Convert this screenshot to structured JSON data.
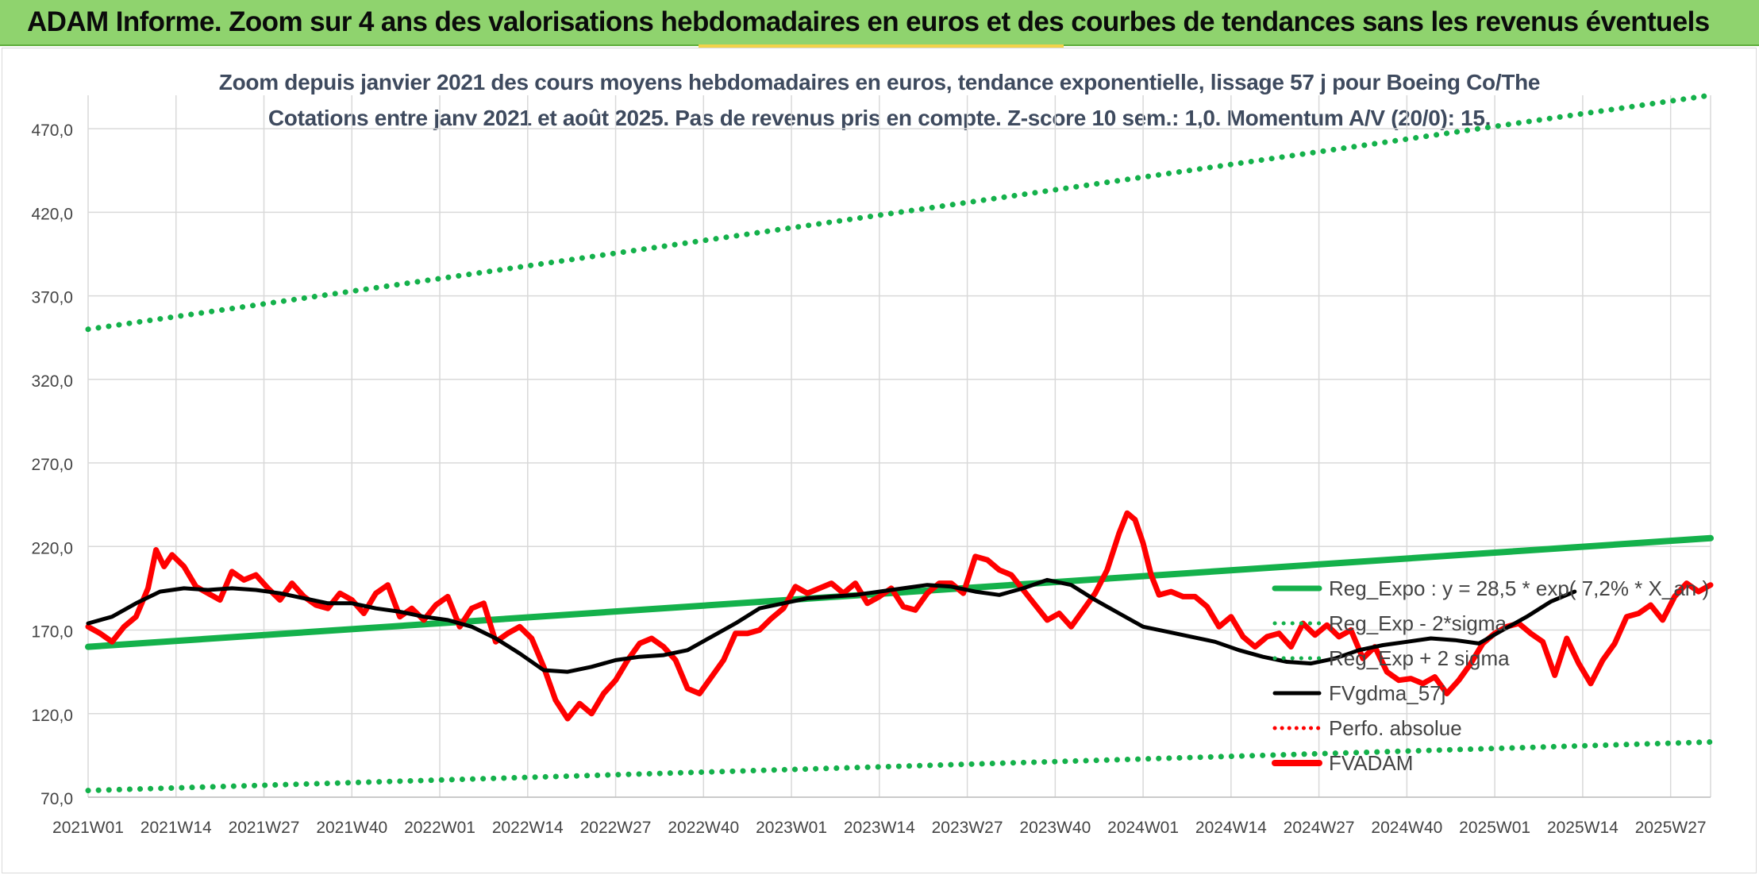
{
  "header": {
    "title": "ADAM Informe. Zoom sur 4 ans des valorisations hebdomadaires en euros et des courbes de tendances sans les revenus éventuels"
  },
  "colors": {
    "banner": "#8fd36e",
    "trend": "#14b14b",
    "price": "#ff0000",
    "smooth": "#000000",
    "perfo": "#ff0000",
    "grid": "#d9d9d9"
  },
  "chart_data": {
    "type": "line",
    "title": "Zoom depuis janvier 2021 des cours moyens hebdomadaires en euros, tendance exponentielle, lissage 57 j pour Boeing Co/The",
    "subtitle": "Cotations entre janv 2021 et août 2025. Pas de revenus pris en compte. Z-score 10 sem.: 1,0. Momentum A/V (20/0): 15.",
    "xlabel": "",
    "ylabel": "",
    "ylim": [
      70,
      490
    ],
    "yticks": [
      "70,0",
      "120,0",
      "170,0",
      "220,0",
      "270,0",
      "320,0",
      "370,0",
      "420,0",
      "470,0"
    ],
    "ytick_values": [
      70,
      120,
      170,
      220,
      270,
      320,
      370,
      420,
      470
    ],
    "xticks": [
      "2021W01",
      "2021W14",
      "2021W27",
      "2021W40",
      "2022W01",
      "2022W14",
      "2022W27",
      "2022W40",
      "2023W01",
      "2023W14",
      "2023W27",
      "2023W40",
      "2024W01",
      "2024W14",
      "2024W27",
      "2024W40",
      "2025W01",
      "2025W14",
      "2025W27"
    ],
    "grid": true,
    "legend_position": "bottom-right",
    "week_count": 247,
    "series": [
      {
        "name": "Reg_Expo : y = 28,5 * exp( 7,2% *  X_an )",
        "style": "solid",
        "color": "#14b14b",
        "points": [
          [
            0,
            160
          ],
          [
            246,
            225
          ]
        ]
      },
      {
        "name": "Reg_Exp - 2*sigma",
        "style": "dotted",
        "color": "#14b14b",
        "points": [
          [
            0,
            74
          ],
          [
            246,
            103
          ]
        ]
      },
      {
        "name": "Reg_Exp + 2 sigma",
        "style": "dotted",
        "color": "#14b14b",
        "points": [
          [
            0,
            350
          ],
          [
            246,
            490
          ]
        ]
      },
      {
        "name": "FVgdma_57j",
        "style": "solid",
        "color": "#000000",
        "points": [
          [
            0,
            174
          ],
          [
            6,
            178
          ],
          [
            12,
            186
          ],
          [
            18,
            193
          ],
          [
            24,
            195
          ],
          [
            30,
            194
          ],
          [
            36,
            195
          ],
          [
            42,
            194
          ],
          [
            48,
            192
          ],
          [
            54,
            189
          ],
          [
            60,
            186
          ],
          [
            66,
            186
          ],
          [
            72,
            183
          ],
          [
            78,
            181
          ],
          [
            84,
            178
          ],
          [
            90,
            176
          ],
          [
            96,
            172
          ],
          [
            102,
            165
          ],
          [
            108,
            156
          ],
          [
            114,
            146
          ],
          [
            120,
            145
          ],
          [
            126,
            148
          ],
          [
            132,
            152
          ],
          [
            138,
            154
          ],
          [
            144,
            155
          ],
          [
            150,
            158
          ],
          [
            156,
            166
          ],
          [
            162,
            174
          ],
          [
            168,
            183
          ],
          [
            174,
            186
          ],
          [
            180,
            189
          ],
          [
            186,
            190
          ],
          [
            192,
            191
          ],
          [
            198,
            193
          ],
          [
            204,
            195
          ],
          [
            210,
            197
          ],
          [
            216,
            196
          ],
          [
            222,
            193
          ],
          [
            228,
            191
          ],
          [
            234,
            195
          ],
          [
            240,
            200
          ],
          [
            246,
            197
          ],
          [
            252,
            188
          ],
          [
            258,
            180
          ],
          [
            264,
            172
          ],
          [
            270,
            169
          ],
          [
            276,
            166
          ],
          [
            282,
            163
          ],
          [
            288,
            158
          ],
          [
            294,
            154
          ],
          [
            300,
            151
          ],
          [
            306,
            150
          ],
          [
            312,
            153
          ],
          [
            318,
            158
          ],
          [
            324,
            161
          ],
          [
            330,
            163
          ],
          [
            336,
            165
          ],
          [
            342,
            164
          ],
          [
            348,
            162
          ],
          [
            354,
            170
          ],
          [
            360,
            178
          ],
          [
            366,
            187
          ],
          [
            372,
            193
          ]
        ]
      },
      {
        "name": "Perfo. absolue",
        "style": "dotted",
        "color": "#ff0000",
        "points": []
      },
      {
        "name": "FVADAM",
        "style": "solid",
        "color": "#ff0000",
        "points": [
          [
            0,
            172
          ],
          [
            3,
            168
          ],
          [
            6,
            163
          ],
          [
            9,
            172
          ],
          [
            12,
            178
          ],
          [
            15,
            195
          ],
          [
            17,
            218
          ],
          [
            19,
            208
          ],
          [
            21,
            215
          ],
          [
            24,
            208
          ],
          [
            27,
            196
          ],
          [
            30,
            192
          ],
          [
            33,
            188
          ],
          [
            36,
            205
          ],
          [
            39,
            200
          ],
          [
            42,
            203
          ],
          [
            45,
            195
          ],
          [
            48,
            188
          ],
          [
            51,
            198
          ],
          [
            54,
            190
          ],
          [
            57,
            185
          ],
          [
            60,
            183
          ],
          [
            63,
            192
          ],
          [
            66,
            188
          ],
          [
            69,
            180
          ],
          [
            72,
            192
          ],
          [
            75,
            197
          ],
          [
            78,
            178
          ],
          [
            81,
            183
          ],
          [
            84,
            176
          ],
          [
            87,
            185
          ],
          [
            90,
            190
          ],
          [
            93,
            172
          ],
          [
            96,
            183
          ],
          [
            99,
            186
          ],
          [
            102,
            163
          ],
          [
            105,
            168
          ],
          [
            108,
            172
          ],
          [
            111,
            165
          ],
          [
            114,
            148
          ],
          [
            117,
            128
          ],
          [
            120,
            117
          ],
          [
            123,
            126
          ],
          [
            126,
            120
          ],
          [
            129,
            132
          ],
          [
            132,
            140
          ],
          [
            135,
            152
          ],
          [
            138,
            162
          ],
          [
            141,
            165
          ],
          [
            144,
            160
          ],
          [
            147,
            152
          ],
          [
            150,
            135
          ],
          [
            153,
            132
          ],
          [
            156,
            142
          ],
          [
            159,
            152
          ],
          [
            162,
            168
          ],
          [
            165,
            168
          ],
          [
            168,
            170
          ],
          [
            171,
            177
          ],
          [
            174,
            183
          ],
          [
            177,
            196
          ],
          [
            180,
            192
          ],
          [
            183,
            195
          ],
          [
            186,
            198
          ],
          [
            189,
            192
          ],
          [
            192,
            198
          ],
          [
            195,
            186
          ],
          [
            198,
            190
          ],
          [
            201,
            195
          ],
          [
            204,
            184
          ],
          [
            207,
            182
          ],
          [
            210,
            192
          ],
          [
            213,
            198
          ],
          [
            216,
            198
          ],
          [
            219,
            192
          ],
          [
            222,
            214
          ],
          [
            225,
            212
          ],
          [
            228,
            206
          ],
          [
            231,
            203
          ],
          [
            234,
            194
          ],
          [
            237,
            185
          ],
          [
            240,
            176
          ],
          [
            243,
            180
          ],
          [
            246,
            172
          ],
          [
            249,
            182
          ],
          [
            252,
            192
          ],
          [
            255,
            206
          ],
          [
            258,
            228
          ],
          [
            260,
            240
          ],
          [
            262,
            236
          ],
          [
            264,
            222
          ],
          [
            266,
            203
          ],
          [
            268,
            191
          ],
          [
            271,
            193
          ],
          [
            274,
            190
          ],
          [
            277,
            190
          ],
          [
            280,
            184
          ],
          [
            283,
            172
          ],
          [
            286,
            178
          ],
          [
            289,
            166
          ],
          [
            292,
            160
          ],
          [
            295,
            166
          ],
          [
            298,
            168
          ],
          [
            301,
            160
          ],
          [
            304,
            174
          ],
          [
            307,
            167
          ],
          [
            310,
            173
          ],
          [
            313,
            166
          ],
          [
            316,
            170
          ],
          [
            319,
            153
          ],
          [
            322,
            160
          ],
          [
            325,
            145
          ],
          [
            328,
            140
          ],
          [
            331,
            141
          ],
          [
            334,
            138
          ],
          [
            337,
            142
          ],
          [
            340,
            132
          ],
          [
            343,
            140
          ],
          [
            346,
            150
          ],
          [
            349,
            162
          ],
          [
            352,
            168
          ],
          [
            355,
            172
          ],
          [
            358,
            174
          ],
          [
            361,
            168
          ],
          [
            364,
            163
          ],
          [
            367,
            143
          ],
          [
            370,
            165
          ],
          [
            373,
            150
          ],
          [
            376,
            138
          ],
          [
            379,
            152
          ],
          [
            382,
            162
          ],
          [
            385,
            178
          ],
          [
            388,
            180
          ],
          [
            391,
            185
          ],
          [
            394,
            176
          ],
          [
            397,
            190
          ],
          [
            400,
            198
          ],
          [
            403,
            193
          ],
          [
            406,
            197
          ]
        ]
      }
    ]
  }
}
